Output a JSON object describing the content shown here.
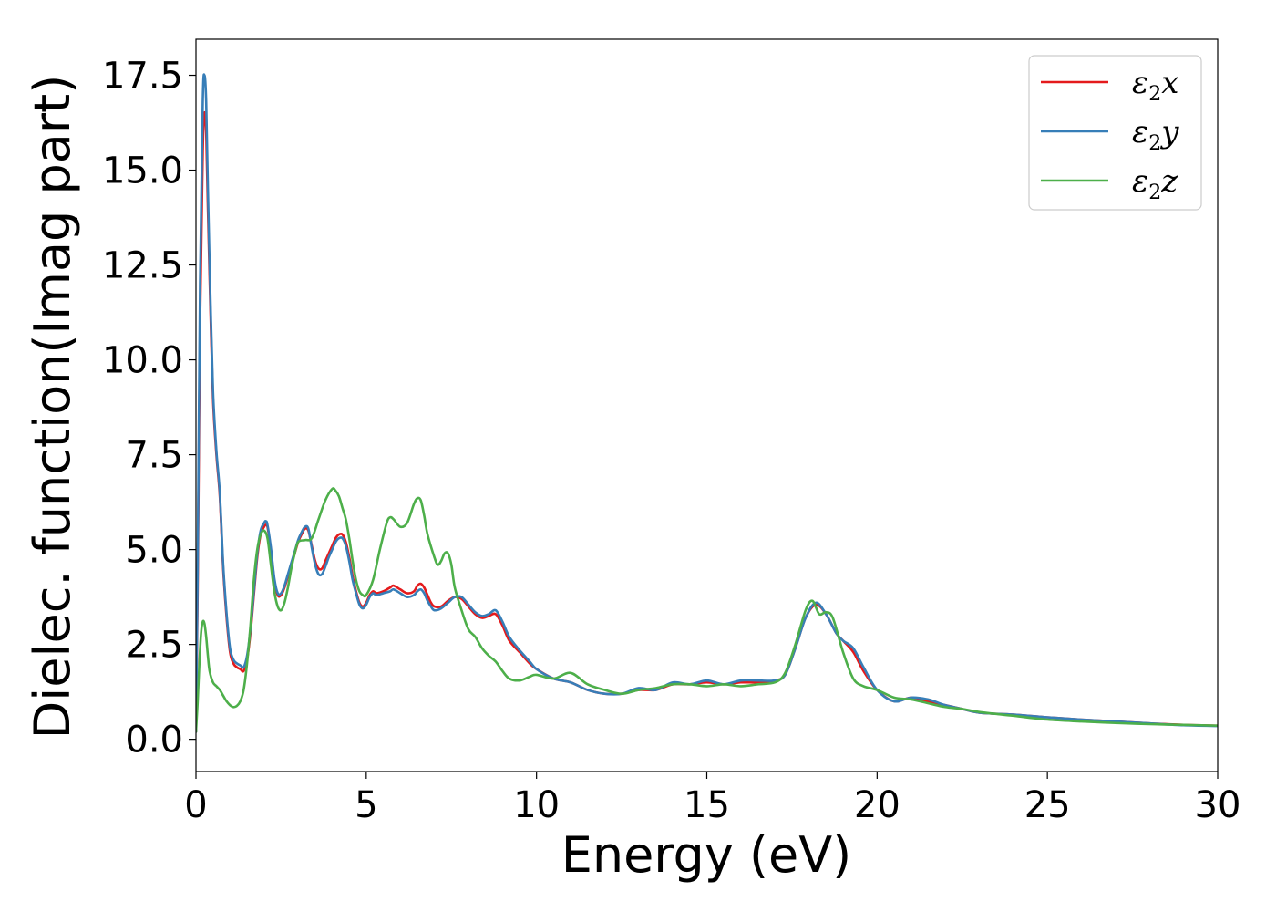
{
  "chart_data": {
    "type": "line",
    "title": "",
    "xlabel": "Energy (eV)",
    "ylabel": "Dielec. function(Imag part)",
    "xlim": [
      0,
      30
    ],
    "ylim": [
      -0.85,
      18.45
    ],
    "xticks": [
      0,
      5,
      10,
      15,
      20,
      25,
      30
    ],
    "xtick_labels": [
      "0",
      "5",
      "10",
      "15",
      "20",
      "25",
      "30"
    ],
    "yticks": [
      0.0,
      2.5,
      5.0,
      7.5,
      10.0,
      12.5,
      15.0,
      17.5
    ],
    "ytick_labels": [
      "0.0",
      "2.5",
      "5.0",
      "7.5",
      "10.0",
      "12.5",
      "15.0",
      "17.5"
    ],
    "grid": false,
    "legend_position": "top-right",
    "series": [
      {
        "name": "ε2x",
        "label_main": "ε",
        "label_sub": "2",
        "label_suffix": "x",
        "color": "#e41a1c",
        "x": [
          0.0,
          0.05,
          0.12,
          0.2,
          0.25,
          0.3,
          0.35,
          0.42,
          0.5,
          0.6,
          0.7,
          0.8,
          0.9,
          1.0,
          1.1,
          1.2,
          1.3,
          1.4,
          1.5,
          1.6,
          1.7,
          1.8,
          1.9,
          2.0,
          2.05,
          2.1,
          2.2,
          2.3,
          2.4,
          2.5,
          2.6,
          2.7,
          2.8,
          2.9,
          3.0,
          3.1,
          3.2,
          3.3,
          3.4,
          3.5,
          3.6,
          3.7,
          3.8,
          3.9,
          4.0,
          4.1,
          4.2,
          4.3,
          4.4,
          4.5,
          4.6,
          4.7,
          4.8,
          4.9,
          5.0,
          5.1,
          5.2,
          5.3,
          5.5,
          5.7,
          5.8,
          6.0,
          6.2,
          6.4,
          6.5,
          6.6,
          6.7,
          6.8,
          6.9,
          7.0,
          7.2,
          7.4,
          7.6,
          7.8,
          8.0,
          8.2,
          8.4,
          8.6,
          8.8,
          9.0,
          9.2,
          9.5,
          9.8,
          10.0,
          10.5,
          11.0,
          11.5,
          12.0,
          12.5,
          13.0,
          13.5,
          14.0,
          14.5,
          15.0,
          15.5,
          16.0,
          16.5,
          17.0,
          17.3,
          17.6,
          17.9,
          18.2,
          18.5,
          18.8,
          19.0,
          19.3,
          19.6,
          20.0,
          20.5,
          21.0,
          21.5,
          22.0,
          22.5,
          23.0,
          24.0,
          25.0,
          26.0,
          27.0,
          28.0,
          29.0,
          30.0
        ],
        "y": [
          0.2,
          4.0,
          11.0,
          15.5,
          16.5,
          16.0,
          14.0,
          11.5,
          9.0,
          7.5,
          6.4,
          4.5,
          3.2,
          2.3,
          2.0,
          1.9,
          1.85,
          1.8,
          2.1,
          2.8,
          3.8,
          4.8,
          5.4,
          5.6,
          5.65,
          5.6,
          5.0,
          4.2,
          3.8,
          3.8,
          4.0,
          4.3,
          4.6,
          4.9,
          5.2,
          5.4,
          5.55,
          5.5,
          5.1,
          4.7,
          4.5,
          4.5,
          4.7,
          4.9,
          5.1,
          5.3,
          5.4,
          5.4,
          5.2,
          4.8,
          4.3,
          3.9,
          3.6,
          3.5,
          3.6,
          3.8,
          3.9,
          3.85,
          3.9,
          4.0,
          4.05,
          3.95,
          3.85,
          3.9,
          4.05,
          4.1,
          4.0,
          3.8,
          3.6,
          3.5,
          3.5,
          3.65,
          3.75,
          3.7,
          3.5,
          3.3,
          3.2,
          3.25,
          3.3,
          3.0,
          2.6,
          2.3,
          2.0,
          1.85,
          1.6,
          1.5,
          1.3,
          1.2,
          1.2,
          1.3,
          1.3,
          1.45,
          1.45,
          1.5,
          1.45,
          1.5,
          1.5,
          1.55,
          1.7,
          2.4,
          3.2,
          3.55,
          3.3,
          2.8,
          2.6,
          2.3,
          1.8,
          1.3,
          1.0,
          1.1,
          1.0,
          0.9,
          0.8,
          0.7,
          0.65,
          0.58,
          0.52,
          0.47,
          0.42,
          0.38,
          0.36
        ]
      },
      {
        "name": "ε2y",
        "label_main": "ε",
        "label_sub": "2",
        "label_suffix": "y",
        "color": "#377eb8",
        "x": [
          0.0,
          0.05,
          0.12,
          0.2,
          0.25,
          0.3,
          0.35,
          0.42,
          0.5,
          0.6,
          0.7,
          0.8,
          0.9,
          1.0,
          1.1,
          1.2,
          1.3,
          1.4,
          1.5,
          1.6,
          1.7,
          1.8,
          1.9,
          2.0,
          2.05,
          2.1,
          2.2,
          2.3,
          2.4,
          2.5,
          2.6,
          2.7,
          2.8,
          2.9,
          3.0,
          3.1,
          3.2,
          3.3,
          3.4,
          3.5,
          3.6,
          3.7,
          3.8,
          3.9,
          4.0,
          4.1,
          4.2,
          4.3,
          4.4,
          4.5,
          4.6,
          4.7,
          4.8,
          4.9,
          5.0,
          5.1,
          5.2,
          5.3,
          5.5,
          5.7,
          5.8,
          6.0,
          6.2,
          6.4,
          6.5,
          6.6,
          6.7,
          6.8,
          6.9,
          7.0,
          7.2,
          7.4,
          7.6,
          7.8,
          8.0,
          8.2,
          8.4,
          8.6,
          8.8,
          9.0,
          9.2,
          9.5,
          9.8,
          10.0,
          10.5,
          11.0,
          11.5,
          12.0,
          12.5,
          13.0,
          13.5,
          14.0,
          14.5,
          15.0,
          15.5,
          16.0,
          16.5,
          17.0,
          17.3,
          17.6,
          17.9,
          18.2,
          18.5,
          18.8,
          19.0,
          19.3,
          19.6,
          20.0,
          20.5,
          21.0,
          21.5,
          22.0,
          22.5,
          23.0,
          24.0,
          25.0,
          26.0,
          27.0,
          28.0,
          29.0,
          30.0
        ],
        "y": [
          0.2,
          4.5,
          12.0,
          16.8,
          17.5,
          16.8,
          14.5,
          11.8,
          9.2,
          7.6,
          6.5,
          4.6,
          3.3,
          2.4,
          2.1,
          2.0,
          1.95,
          1.9,
          2.2,
          2.9,
          3.9,
          4.9,
          5.5,
          5.7,
          5.75,
          5.65,
          5.05,
          4.25,
          3.85,
          3.85,
          4.05,
          4.35,
          4.65,
          4.95,
          5.25,
          5.45,
          5.6,
          5.55,
          5.05,
          4.6,
          4.35,
          4.35,
          4.55,
          4.8,
          5.0,
          5.2,
          5.3,
          5.3,
          5.1,
          4.7,
          4.2,
          3.85,
          3.55,
          3.45,
          3.55,
          3.75,
          3.85,
          3.8,
          3.85,
          3.9,
          3.95,
          3.85,
          3.75,
          3.8,
          3.9,
          3.95,
          3.85,
          3.65,
          3.5,
          3.4,
          3.45,
          3.6,
          3.75,
          3.75,
          3.55,
          3.35,
          3.25,
          3.3,
          3.4,
          3.1,
          2.7,
          2.35,
          2.05,
          1.85,
          1.6,
          1.5,
          1.3,
          1.2,
          1.2,
          1.35,
          1.3,
          1.5,
          1.45,
          1.55,
          1.45,
          1.55,
          1.55,
          1.55,
          1.7,
          2.4,
          3.2,
          3.6,
          3.3,
          2.8,
          2.6,
          2.4,
          1.9,
          1.3,
          1.0,
          1.1,
          1.05,
          0.9,
          0.8,
          0.7,
          0.65,
          0.58,
          0.52,
          0.47,
          0.42,
          0.37,
          0.35
        ]
      },
      {
        "name": "ε2z",
        "label_main": "ε",
        "label_sub": "2",
        "label_suffix": "z",
        "color": "#4daf4a",
        "x": [
          0.0,
          0.05,
          0.1,
          0.15,
          0.2,
          0.25,
          0.3,
          0.35,
          0.4,
          0.5,
          0.6,
          0.7,
          0.8,
          0.9,
          1.0,
          1.1,
          1.2,
          1.3,
          1.4,
          1.5,
          1.6,
          1.7,
          1.8,
          1.9,
          2.0,
          2.1,
          2.2,
          2.3,
          2.4,
          2.5,
          2.6,
          2.7,
          2.8,
          2.9,
          3.0,
          3.2,
          3.4,
          3.6,
          3.8,
          4.0,
          4.1,
          4.2,
          4.3,
          4.4,
          4.5,
          4.6,
          4.7,
          4.8,
          4.9,
          5.0,
          5.2,
          5.4,
          5.6,
          5.7,
          5.8,
          6.0,
          6.2,
          6.4,
          6.5,
          6.6,
          6.7,
          6.8,
          7.0,
          7.1,
          7.2,
          7.3,
          7.4,
          7.5,
          7.6,
          7.8,
          8.0,
          8.2,
          8.4,
          8.6,
          8.8,
          9.0,
          9.2,
          9.5,
          9.8,
          10.0,
          10.5,
          11.0,
          11.5,
          12.0,
          12.5,
          13.0,
          13.5,
          14.0,
          14.5,
          15.0,
          15.5,
          16.0,
          16.5,
          17.0,
          17.3,
          17.6,
          17.9,
          18.1,
          18.3,
          18.5,
          18.7,
          19.0,
          19.3,
          19.6,
          20.0,
          20.5,
          21.0,
          21.5,
          22.0,
          22.5,
          23.0,
          24.0,
          25.0,
          26.0,
          27.0,
          28.0,
          29.0,
          30.0
        ],
        "y": [
          0.2,
          1.0,
          2.0,
          2.8,
          3.1,
          3.05,
          2.7,
          2.2,
          1.8,
          1.5,
          1.4,
          1.3,
          1.15,
          1.0,
          0.9,
          0.85,
          0.88,
          1.0,
          1.3,
          2.0,
          3.0,
          4.2,
          5.0,
          5.4,
          5.5,
          5.3,
          4.6,
          3.9,
          3.5,
          3.4,
          3.6,
          4.0,
          4.5,
          4.9,
          5.2,
          5.25,
          5.3,
          5.8,
          6.3,
          6.6,
          6.55,
          6.4,
          6.1,
          5.8,
          5.3,
          4.7,
          4.2,
          3.9,
          3.8,
          3.8,
          4.2,
          5.0,
          5.7,
          5.85,
          5.8,
          5.6,
          5.7,
          6.2,
          6.35,
          6.3,
          5.9,
          5.4,
          4.8,
          4.6,
          4.7,
          4.9,
          4.9,
          4.6,
          4.0,
          3.4,
          2.9,
          2.7,
          2.4,
          2.2,
          2.05,
          1.8,
          1.6,
          1.55,
          1.65,
          1.7,
          1.6,
          1.75,
          1.45,
          1.3,
          1.2,
          1.3,
          1.35,
          1.45,
          1.45,
          1.4,
          1.45,
          1.4,
          1.45,
          1.5,
          1.75,
          2.5,
          3.4,
          3.65,
          3.3,
          3.35,
          3.2,
          2.3,
          1.6,
          1.4,
          1.3,
          1.1,
          1.05,
          0.95,
          0.85,
          0.8,
          0.72,
          0.62,
          0.52,
          0.47,
          0.43,
          0.4,
          0.38,
          0.36
        ]
      }
    ]
  }
}
